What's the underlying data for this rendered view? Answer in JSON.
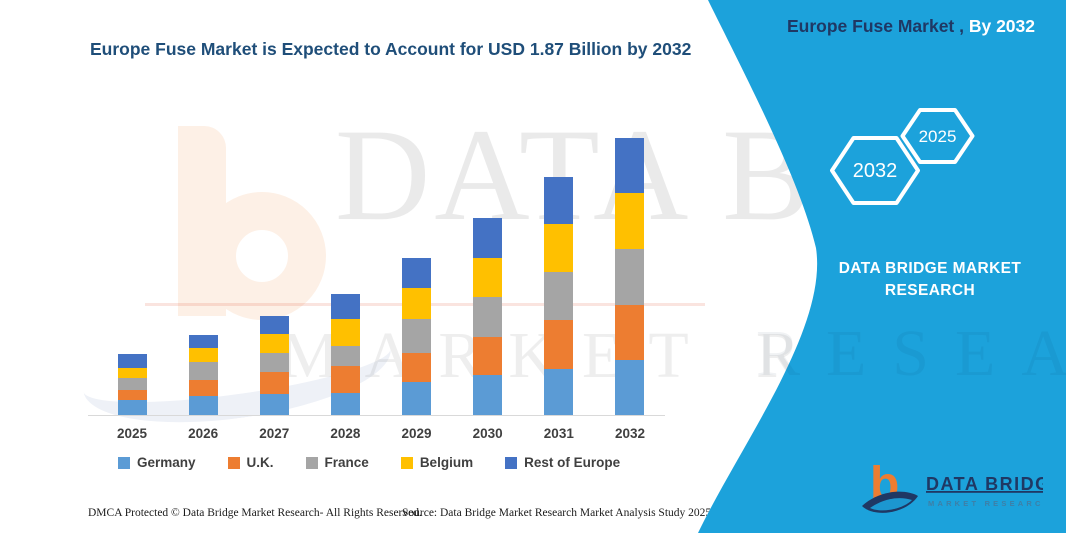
{
  "colors": {
    "accent_teal": "#1CA2DB",
    "title_navy": "#1F4E79",
    "panel_navy": "#1F3864",
    "axis_gray": "#D9D9D9",
    "label_gray": "#404040",
    "logo_orange": "#ED7D31"
  },
  "header": {
    "title": "Europe Fuse Market is Expected to Account for USD 1.87 Billion by 2032"
  },
  "side_panel": {
    "title_dark": "Europe Fuse Market ,",
    "title_light": " By 2032",
    "hexagons": [
      {
        "label": "2032"
      },
      {
        "label": "2025"
      }
    ],
    "brand_text": "DATA BRIDGE MARKET RESEARCH"
  },
  "watermark": {
    "line1": "DATA BRIDGE",
    "line2": "MARKET RESEARCH"
  },
  "logo": {
    "name": "DATA BRIDGE",
    "tagline": "MARKET RESEARCH"
  },
  "footer": {
    "dmca": "DMCA Protected © Data Bridge Market Research- All Rights Reserved.",
    "source": "Source: Data Bridge Market Research Market Analysis Study 2025"
  },
  "chart_data": {
    "type": "bar",
    "stacked": true,
    "title": "Europe Fuse Market is Expected to Account for USD 1.87 Billion by 2032",
    "unit": "USD Billion",
    "categories": [
      "2025",
      "2026",
      "2027",
      "2028",
      "2029",
      "2030",
      "2031",
      "2032"
    ],
    "series": [
      {
        "name": "Germany",
        "color": "#5B9BD5",
        "values": [
          0.1,
          0.13,
          0.14,
          0.15,
          0.22,
          0.27,
          0.31,
          0.37
        ]
      },
      {
        "name": "U.K.",
        "color": "#ED7D31",
        "values": [
          0.07,
          0.11,
          0.15,
          0.18,
          0.2,
          0.26,
          0.33,
          0.37
        ]
      },
      {
        "name": "France",
        "color": "#A5A5A5",
        "values": [
          0.08,
          0.12,
          0.13,
          0.14,
          0.23,
          0.27,
          0.33,
          0.38
        ]
      },
      {
        "name": "Belgium",
        "color": "#FFC000",
        "values": [
          0.07,
          0.09,
          0.13,
          0.18,
          0.21,
          0.26,
          0.32,
          0.38
        ]
      },
      {
        "name": "Rest of Europe",
        "color": "#4472C4",
        "values": [
          0.09,
          0.09,
          0.12,
          0.17,
          0.2,
          0.27,
          0.32,
          0.37
        ]
      }
    ],
    "totals": [
      0.41,
      0.54,
      0.67,
      0.82,
      1.06,
      1.33,
      1.61,
      1.87
    ],
    "annotations": [
      "2032 total shown in title: USD 1.87 Billion"
    ],
    "y_axis": {
      "visible": false
    },
    "x_axis": {
      "line_visible": true
    },
    "grid": false,
    "legend_position": "bottom"
  }
}
